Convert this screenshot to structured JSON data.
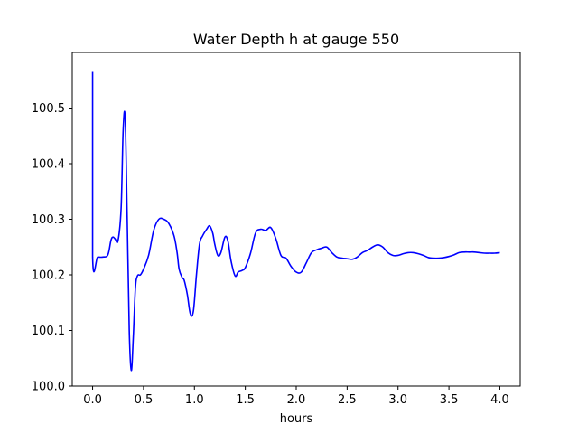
{
  "chart_data": {
    "type": "line",
    "title": "Water Depth h at gauge 550",
    "xlabel": "hours",
    "ylabel": "",
    "xlim": [
      -0.2,
      4.2
    ],
    "ylim": [
      100.0,
      100.6
    ],
    "grid": false,
    "legend": "none",
    "x_ticks": [
      {
        "value": 0.0,
        "label": "0.0"
      },
      {
        "value": 0.5,
        "label": "0.5"
      },
      {
        "value": 1.0,
        "label": "1.0"
      },
      {
        "value": 1.5,
        "label": "1.5"
      },
      {
        "value": 2.0,
        "label": "2.0"
      },
      {
        "value": 2.5,
        "label": "2.5"
      },
      {
        "value": 3.0,
        "label": "3.0"
      },
      {
        "value": 3.5,
        "label": "3.5"
      },
      {
        "value": 4.0,
        "label": "4.0"
      }
    ],
    "y_ticks": [
      {
        "value": 100.0,
        "label": "100.0"
      },
      {
        "value": 100.1,
        "label": "100.1"
      },
      {
        "value": 100.2,
        "label": "100.2"
      },
      {
        "value": 100.3,
        "label": "100.3"
      },
      {
        "value": 100.4,
        "label": "100.4"
      },
      {
        "value": 100.5,
        "label": "100.5"
      }
    ],
    "series": [
      {
        "color": "#0000ff",
        "x": [
          0.0,
          0.0,
          0.0,
          0.05,
          0.1,
          0.15,
          0.18,
          0.2,
          0.22,
          0.25,
          0.28,
          0.3,
          0.32,
          0.34,
          0.36,
          0.38,
          0.4,
          0.42,
          0.44,
          0.47,
          0.5,
          0.55,
          0.6,
          0.65,
          0.7,
          0.75,
          0.8,
          0.83,
          0.85,
          0.88,
          0.9,
          0.93,
          0.96,
          0.99,
          1.02,
          1.05,
          1.08,
          1.12,
          1.15,
          1.18,
          1.2,
          1.23,
          1.26,
          1.3,
          1.33,
          1.36,
          1.4,
          1.43,
          1.47,
          1.5,
          1.55,
          1.6,
          1.65,
          1.7,
          1.75,
          1.8,
          1.85,
          1.9,
          1.95,
          2.0,
          2.05,
          2.1,
          2.15,
          2.2,
          2.25,
          2.3,
          2.35,
          2.4,
          2.45,
          2.5,
          2.55,
          2.6,
          2.65,
          2.7,
          2.75,
          2.8,
          2.85,
          2.9,
          2.95,
          3.0,
          3.05,
          3.1,
          3.15,
          3.2,
          3.25,
          3.3,
          3.35,
          3.4,
          3.45,
          3.5,
          3.55,
          3.6,
          3.65,
          3.7,
          3.75,
          3.8,
          3.85,
          3.9,
          3.95,
          4.0
        ],
        "y": [
          100.565,
          100.565,
          100.232,
          100.232,
          100.232,
          100.236,
          100.262,
          100.268,
          100.265,
          100.262,
          100.32,
          100.46,
          100.48,
          100.3,
          100.1,
          100.028,
          100.09,
          100.175,
          100.198,
          100.2,
          100.21,
          100.235,
          100.28,
          100.3,
          100.3,
          100.292,
          100.27,
          100.24,
          100.21,
          100.195,
          100.19,
          100.165,
          100.13,
          100.135,
          100.2,
          100.255,
          100.27,
          100.282,
          100.288,
          100.275,
          100.255,
          100.235,
          100.24,
          100.268,
          100.26,
          100.225,
          100.198,
          100.205,
          100.208,
          100.213,
          100.238,
          100.275,
          100.282,
          100.28,
          100.285,
          100.265,
          100.235,
          100.23,
          100.215,
          100.205,
          100.205,
          100.222,
          100.24,
          100.245,
          100.248,
          100.25,
          100.24,
          100.232,
          100.23,
          100.229,
          100.228,
          100.232,
          100.24,
          100.244,
          100.25,
          100.254,
          100.25,
          100.24,
          100.235,
          100.235,
          100.238,
          100.24,
          100.24,
          100.238,
          100.235,
          100.231,
          100.23,
          100.23,
          100.231,
          100.233,
          100.236,
          100.24,
          100.241,
          100.241,
          100.241,
          100.24,
          100.239,
          100.239,
          100.239,
          100.24
        ]
      }
    ]
  }
}
